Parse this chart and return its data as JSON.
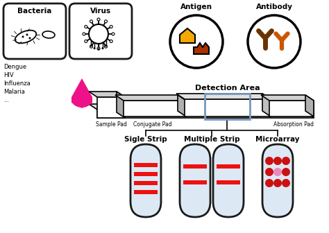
{
  "bacteria_label": "Bacteria",
  "virus_label": "Virus",
  "antigen_label": "Antigen",
  "antibody_label": "Antibody",
  "disease_list": [
    "Dengue",
    "HIV",
    "Influenza",
    "Malaria",
    "..."
  ],
  "pad_labels": [
    "Sample Pad",
    "Conjugate Pad",
    "Absorption Pad"
  ],
  "detection_area_label": "Detection Area",
  "strip_labels": [
    "Sigle Strip",
    "Multiple Strip",
    "Microarray"
  ],
  "bg_color": "#ffffff",
  "box_color": "#1a1a1a",
  "strip_bg": "#dce9f5",
  "strip_border": "#1a1a1a",
  "red_line": "#ee1111",
  "pink_dot": "#ee88bb",
  "red_dot": "#cc1111",
  "drop_color": "#ee1188",
  "antigen_yellow": "#f5a800",
  "antigen_brown": "#a83200",
  "antibody_dark": "#6b3300",
  "antibody_orange": "#cc5500",
  "det_rect_color": "#7799bb",
  "pad_top_color": "#cccccc",
  "pad_side_color": "#aaaaaa",
  "strip_gray": "#e0e0e0"
}
